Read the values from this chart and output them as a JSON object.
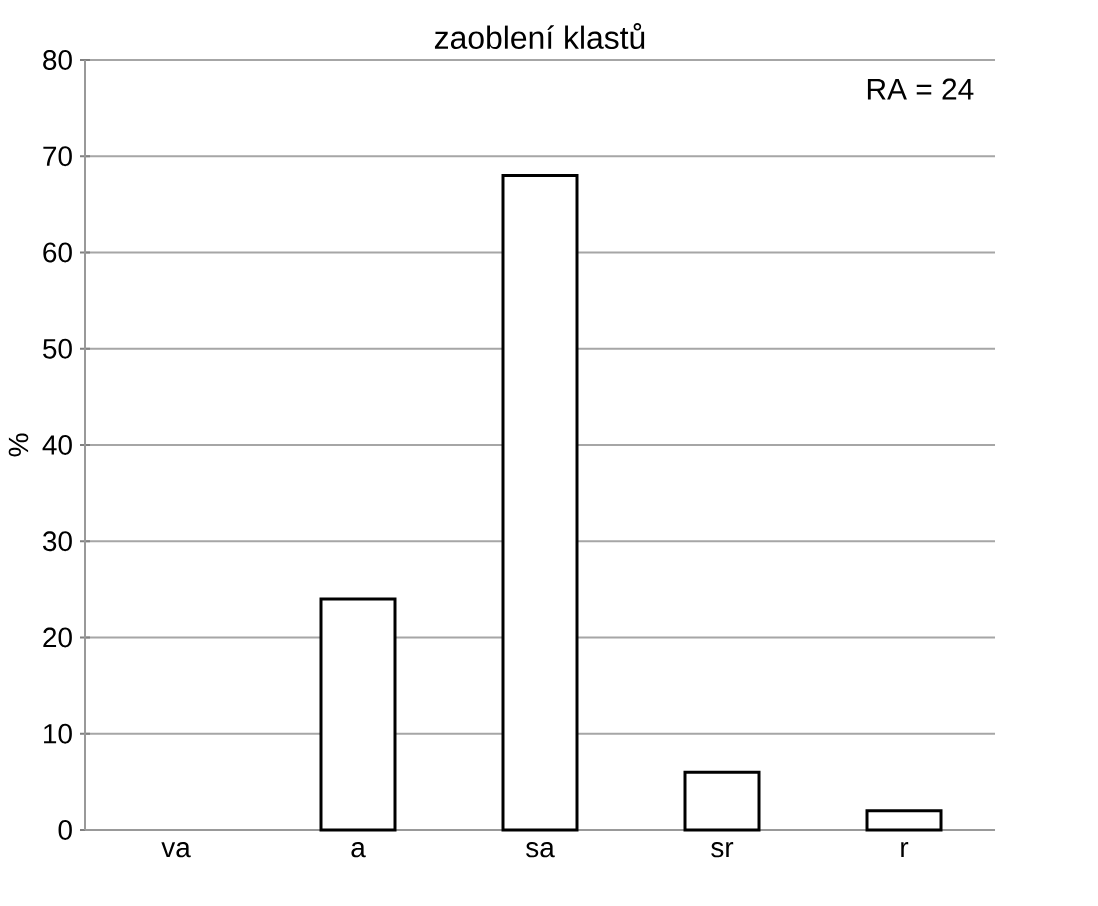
{
  "chart_data": {
    "type": "bar",
    "title": "zaoblení klastů",
    "ylabel": "%",
    "categories": [
      "va",
      "a",
      "sa",
      "sr",
      "r"
    ],
    "values": [
      null,
      24,
      68,
      6,
      2
    ],
    "color": "#ffffff",
    "ylim": [
      0,
      80
    ],
    "yticks": [
      0,
      10,
      20,
      30,
      40,
      50,
      60,
      70,
      80
    ],
    "grid": "y",
    "annotations": [
      "RA = 24"
    ]
  }
}
